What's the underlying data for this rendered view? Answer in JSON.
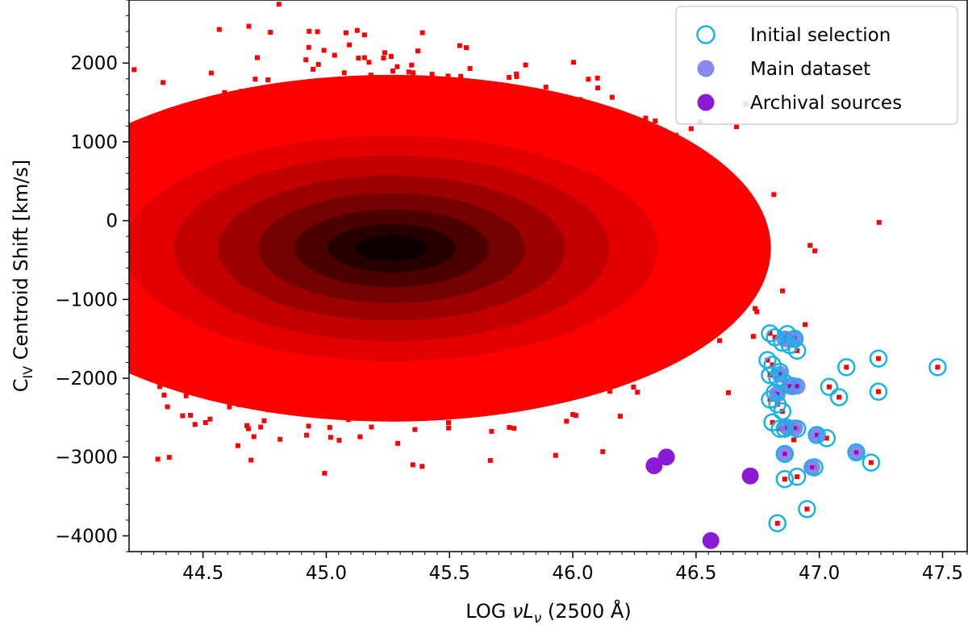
{
  "chart_data": {
    "type": "scatter",
    "title": "",
    "xlabel": {
      "prefix": "LOG ",
      "nu": "ν",
      "L": "L",
      "sub": "ν",
      "rest": " (2500 Å)"
    },
    "ylabel": {
      "main": "C",
      "sub": "IV",
      "rest": " Centroid Shift [km/s]"
    },
    "xlim": [
      44.2,
      47.6
    ],
    "ylim": [
      -4200,
      2800
    ],
    "xticks": [
      44.5,
      45.0,
      45.5,
      46.0,
      46.5,
      47.0,
      47.5
    ],
    "xtick_labels": [
      "44.5",
      "45.0",
      "45.5",
      "46.0",
      "46.5",
      "47.0",
      "47.5"
    ],
    "yticks": [
      -4000,
      -3000,
      -2000,
      -1000,
      0,
      1000,
      2000
    ],
    "ytick_labels": [
      "−4000",
      "−3000",
      "−2000",
      "−1000",
      "0",
      "1000",
      "2000"
    ],
    "grid": false,
    "legend_position": "top-right",
    "colors": {
      "background_density": "#ff0000",
      "density_core": "#000000",
      "initial_selection": "#1ab0e8",
      "main_dataset": "#7b7bf0",
      "archival": "#8b1ad6"
    },
    "background_population": {
      "description": "SDSS quasar sample density",
      "center": [
        45.2,
        -350
      ],
      "spread_x": 0.45,
      "spread_y": 700
    },
    "series": [
      {
        "name": "Initial selection",
        "marker": "open-circle",
        "x": [
          46.8,
          46.82,
          46.85,
          46.87,
          46.9,
          46.88,
          46.91,
          46.79,
          46.81,
          46.84,
          46.8,
          46.83,
          46.86,
          46.82,
          46.8,
          46.83,
          46.85,
          46.81,
          46.84,
          46.86,
          46.91,
          46.89,
          46.99,
          47.04,
          47.08,
          47.11,
          47.24,
          47.24,
          47.48,
          47.03,
          47.21,
          47.15,
          46.86,
          46.86,
          46.91,
          46.98,
          46.95,
          46.83
        ],
        "y": [
          -1430,
          -1480,
          -1550,
          -1440,
          -1500,
          -1580,
          -1650,
          -1770,
          -1830,
          -1920,
          -1960,
          -2000,
          -2060,
          -2180,
          -2270,
          -2330,
          -2420,
          -2560,
          -2640,
          -2640,
          -2640,
          -2100,
          -2720,
          -2110,
          -2240,
          -1860,
          -1750,
          -2170,
          -1860,
          -2760,
          -3070,
          -2940,
          -2960,
          -3280,
          -3250,
          -3130,
          -3660,
          -3840
        ]
      },
      {
        "name": "Main dataset",
        "marker": "filled-circle",
        "x": [
          46.86,
          46.9,
          46.84,
          46.83,
          46.91,
          46.87,
          46.88,
          46.9,
          46.99,
          47.15,
          46.97,
          46.86
        ],
        "y": [
          -1500,
          -1490,
          -1950,
          -2200,
          -2100,
          -2620,
          -2100,
          -2630,
          -2720,
          -2940,
          -3130,
          -2960
        ]
      },
      {
        "name": "Archival sources",
        "marker": "filled-circle",
        "x": [
          46.33,
          46.38,
          46.72,
          46.56
        ],
        "y": [
          -3110,
          -3000,
          -3240,
          -4060
        ]
      }
    ],
    "legend": [
      {
        "label": "Initial selection",
        "marker": "open-circle"
      },
      {
        "label": "Main dataset",
        "marker": "filled-circle"
      },
      {
        "label": "Archival sources",
        "marker": "filled-circle"
      }
    ]
  }
}
